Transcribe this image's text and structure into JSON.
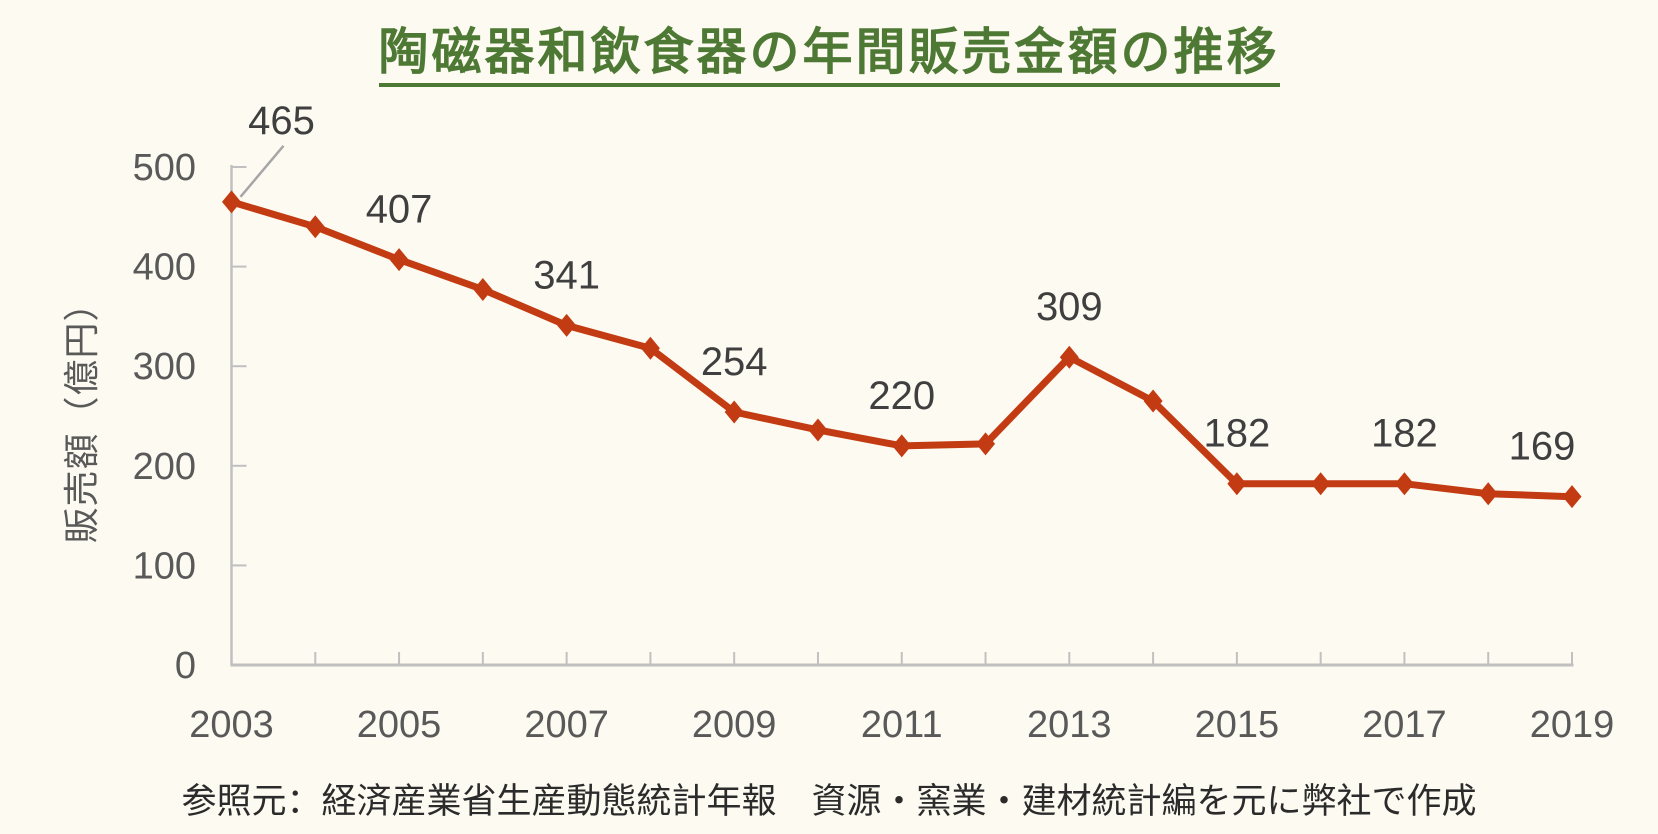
{
  "title": "陶磁器和飲食器の年間販売金額の推移",
  "source_note": "参照元：経済産業省生産動態統計年報　資源・窯業・建材統計編を元に弊社で作成",
  "chart_data": {
    "type": "line",
    "title": "陶磁器和飲食器の年間販売金額の推移",
    "x": [
      2003,
      2004,
      2005,
      2006,
      2007,
      2008,
      2009,
      2010,
      2011,
      2012,
      2013,
      2014,
      2015,
      2016,
      2017,
      2018,
      2019
    ],
    "series": [
      {
        "name": "販売額",
        "values": [
          465,
          440,
          407,
          377,
          341,
          318,
          254,
          236,
          220,
          222,
          309,
          265,
          182,
          182,
          182,
          172,
          169
        ]
      }
    ],
    "labeled_points": [
      {
        "year": 2003,
        "value": 465
      },
      {
        "year": 2005,
        "value": 407
      },
      {
        "year": 2007,
        "value": 341
      },
      {
        "year": 2009,
        "value": 254
      },
      {
        "year": 2011,
        "value": 220
      },
      {
        "year": 2013,
        "value": 309
      },
      {
        "year": 2015,
        "value": 182
      },
      {
        "year": 2017,
        "value": 182
      },
      {
        "year": 2019,
        "value": 169
      }
    ],
    "xlabel": "",
    "ylabel": "販売額（億円）",
    "ylim": [
      0,
      500
    ],
    "yticks": [
      0,
      100,
      200,
      300,
      400,
      500
    ],
    "xticks_labeled": [
      2003,
      2005,
      2007,
      2009,
      2011,
      2013,
      2015,
      2017,
      2019
    ],
    "grid": false,
    "legend": "none",
    "marker": "diamond",
    "first_label_has_callout": true
  },
  "colors": {
    "background": "#FDFAF1",
    "title": "#4E7935",
    "line": "#C33B12",
    "axis": "#C0C0C0",
    "tick_label": "#595959",
    "axis_title": "#595959",
    "data_label": "#3F3F3F",
    "callout_line": "#A6A6A6",
    "source_text": "#2B2B2B"
  }
}
